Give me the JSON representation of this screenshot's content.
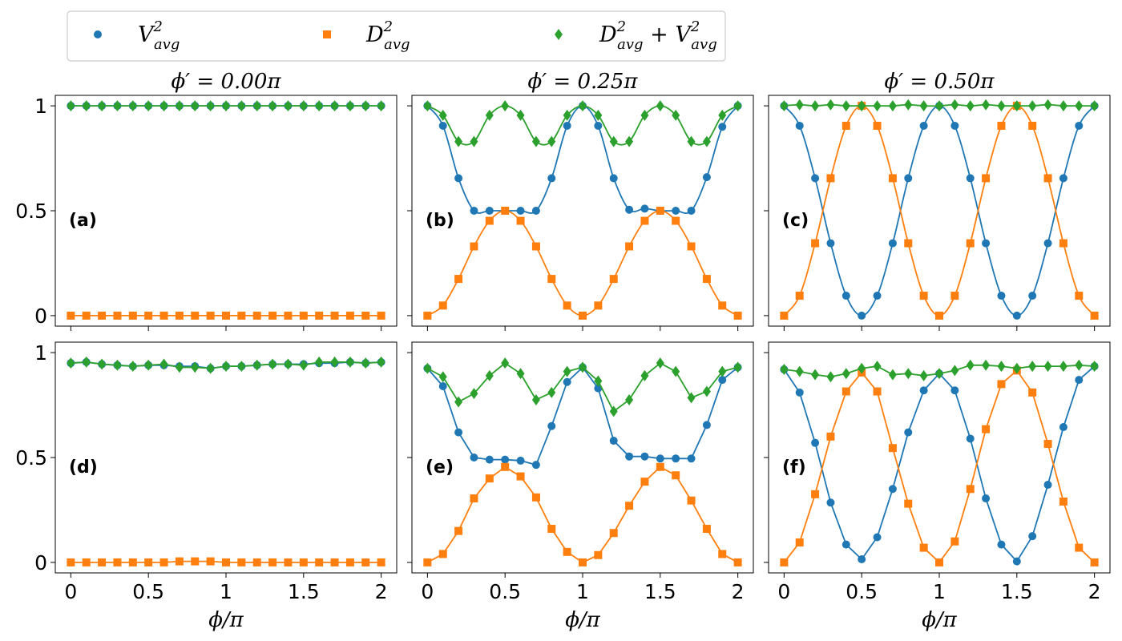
{
  "chart_data": {
    "type": "scatter",
    "layout": "2x3 grid, shared x and y axes",
    "xlabel": "ϕ/π",
    "xlim": [
      -0.1,
      2.1
    ],
    "ylim": [
      -0.05,
      1.05
    ],
    "xticks": [
      0,
      0.5,
      1,
      1.5,
      2
    ],
    "xtick_labels": [
      "0",
      "0.5",
      "1",
      "1.5",
      "2"
    ],
    "yticks": [
      0,
      0.5,
      1
    ],
    "ytick_labels": [
      "0",
      "0.5",
      "1"
    ],
    "column_titles": [
      "ϕ′ = 0.00π",
      "ϕ′ = 0.25π",
      "ϕ′ = 0.50π"
    ],
    "colors": {
      "V": "#1f77b4",
      "D": "#ff7f0e",
      "S": "#2ca02c"
    },
    "legend": {
      "placement": "top-left, above panels",
      "entries": [
        {
          "series": "V",
          "marker": "circle",
          "base": "V",
          "sup": "2",
          "sub": "avg"
        },
        {
          "series": "D",
          "marker": "square",
          "base": "D",
          "sup": "2",
          "sub": "avg"
        },
        {
          "series": "S",
          "marker": "diamond",
          "base": "D",
          "sup": "2",
          "sub": "avg",
          "plus": " + ",
          "base2": "V",
          "sup2": "2",
          "sub2": "avg"
        }
      ]
    },
    "x": [
      0,
      0.1,
      0.2,
      0.3,
      0.4,
      0.5,
      0.6,
      0.7,
      0.8,
      0.9,
      1.0,
      1.1,
      1.2,
      1.3,
      1.4,
      1.5,
      1.6,
      1.7,
      1.8,
      1.9,
      2.0
    ],
    "panels": [
      {
        "tag": "(a)",
        "row": 0,
        "col": 0,
        "line_kind": "smooth",
        "V_points": [
          1,
          1,
          1,
          1,
          1,
          1,
          1,
          1,
          1,
          1,
          1,
          1,
          1,
          1,
          1,
          1,
          1,
          1,
          1,
          1,
          1
        ],
        "D_points": [
          0,
          0,
          0,
          0,
          0,
          0,
          0,
          0,
          0,
          0,
          0,
          0,
          0,
          0,
          0,
          0,
          0,
          0,
          0,
          0,
          0
        ],
        "S_points": [
          1,
          1,
          1,
          1,
          1,
          1,
          1,
          1,
          1,
          1,
          1,
          1,
          1,
          1,
          1,
          1,
          1,
          1,
          1,
          1,
          1
        ]
      },
      {
        "tag": "(b)",
        "row": 0,
        "col": 1,
        "line_kind": "smooth",
        "V_points": [
          1.0,
          0.905,
          0.655,
          0.5,
          0.5,
          0.5,
          0.5,
          0.5,
          0.655,
          0.905,
          1.0,
          0.905,
          0.655,
          0.505,
          0.51,
          0.5,
          0.5,
          0.5,
          0.66,
          0.9,
          1.0
        ],
        "D_points": [
          0,
          0.048,
          0.175,
          0.33,
          0.452,
          0.5,
          0.452,
          0.33,
          0.175,
          0.048,
          0,
          0.048,
          0.175,
          0.33,
          0.452,
          0.5,
          0.452,
          0.33,
          0.175,
          0.048,
          0
        ],
        "S_points": [
          1.0,
          0.955,
          0.83,
          0.83,
          0.955,
          1.0,
          0.955,
          0.83,
          0.83,
          0.955,
          1.0,
          0.955,
          0.83,
          0.83,
          0.955,
          1.0,
          0.955,
          0.83,
          0.83,
          0.955,
          1.0
        ]
      },
      {
        "tag": "(c)",
        "row": 0,
        "col": 2,
        "line_kind": "smooth",
        "V_points": [
          1.0,
          0.905,
          0.655,
          0.345,
          0.095,
          0,
          0.095,
          0.345,
          0.655,
          0.905,
          1.0,
          0.905,
          0.655,
          0.345,
          0.095,
          0,
          0.095,
          0.345,
          0.655,
          0.905,
          1.0
        ],
        "D_points": [
          0,
          0.095,
          0.345,
          0.655,
          0.905,
          1.0,
          0.905,
          0.655,
          0.345,
          0.095,
          0,
          0.095,
          0.345,
          0.655,
          0.905,
          1.0,
          0.905,
          0.655,
          0.345,
          0.095,
          0
        ],
        "S_points": [
          1.0,
          1.005,
          1.0,
          1.005,
          1.0,
          1.0,
          1.0,
          1.0,
          1.005,
          1.0,
          1.0,
          1.005,
          1.0,
          1.005,
          1.0,
          1.0,
          1.0,
          1.005,
          1.0,
          1.0,
          1.0
        ]
      },
      {
        "tag": "(d)",
        "row": 1,
        "col": 0,
        "line_kind": "straight",
        "V_points": [
          0.95,
          0.955,
          0.945,
          0.94,
          0.935,
          0.94,
          0.94,
          0.935,
          0.935,
          0.925,
          0.935,
          0.935,
          0.94,
          0.945,
          0.945,
          0.945,
          0.95,
          0.95,
          0.955,
          0.95,
          0.955
        ],
        "D_points": [
          0,
          0,
          0,
          0,
          0,
          0,
          0,
          0.005,
          0.005,
          0.005,
          0,
          0,
          0,
          0,
          0,
          0,
          0,
          0,
          0,
          0,
          0
        ],
        "S_points": [
          0.95,
          0.955,
          0.945,
          0.94,
          0.935,
          0.94,
          0.945,
          0.93,
          0.93,
          0.925,
          0.935,
          0.935,
          0.94,
          0.945,
          0.945,
          0.94,
          0.955,
          0.955,
          0.955,
          0.95,
          0.955
        ]
      },
      {
        "tag": "(e)",
        "row": 1,
        "col": 1,
        "line_kind": "straight",
        "V_points": [
          0.925,
          0.84,
          0.62,
          0.5,
          0.49,
          0.49,
          0.485,
          0.465,
          0.65,
          0.86,
          0.93,
          0.83,
          0.58,
          0.505,
          0.505,
          0.495,
          0.495,
          0.495,
          0.655,
          0.87,
          0.93
        ],
        "D_points": [
          0,
          0.04,
          0.15,
          0.305,
          0.4,
          0.455,
          0.41,
          0.31,
          0.16,
          0.05,
          0,
          0.035,
          0.14,
          0.27,
          0.385,
          0.455,
          0.415,
          0.295,
          0.16,
          0.04,
          0
        ],
        "S_points": [
          0.925,
          0.885,
          0.765,
          0.805,
          0.89,
          0.95,
          0.9,
          0.775,
          0.81,
          0.91,
          0.93,
          0.865,
          0.72,
          0.775,
          0.89,
          0.95,
          0.91,
          0.785,
          0.815,
          0.91,
          0.93
        ]
      },
      {
        "tag": "(f)",
        "row": 1,
        "col": 2,
        "line_kind": "straight",
        "V_points": [
          0.92,
          0.81,
          0.57,
          0.285,
          0.085,
          0.015,
          0.12,
          0.35,
          0.62,
          0.82,
          0.9,
          0.82,
          0.59,
          0.305,
          0.085,
          0.005,
          0.125,
          0.37,
          0.645,
          0.87,
          0.935
        ],
        "D_points": [
          0,
          0.095,
          0.325,
          0.6,
          0.815,
          0.905,
          0.815,
          0.545,
          0.28,
          0.07,
          0,
          0.1,
          0.35,
          0.635,
          0.85,
          0.915,
          0.81,
          0.565,
          0.29,
          0.07,
          0
        ],
        "S_points": [
          0.92,
          0.91,
          0.895,
          0.885,
          0.9,
          0.925,
          0.935,
          0.895,
          0.9,
          0.89,
          0.9,
          0.915,
          0.94,
          0.94,
          0.935,
          0.925,
          0.935,
          0.935,
          0.935,
          0.94,
          0.935
        ]
      }
    ]
  }
}
